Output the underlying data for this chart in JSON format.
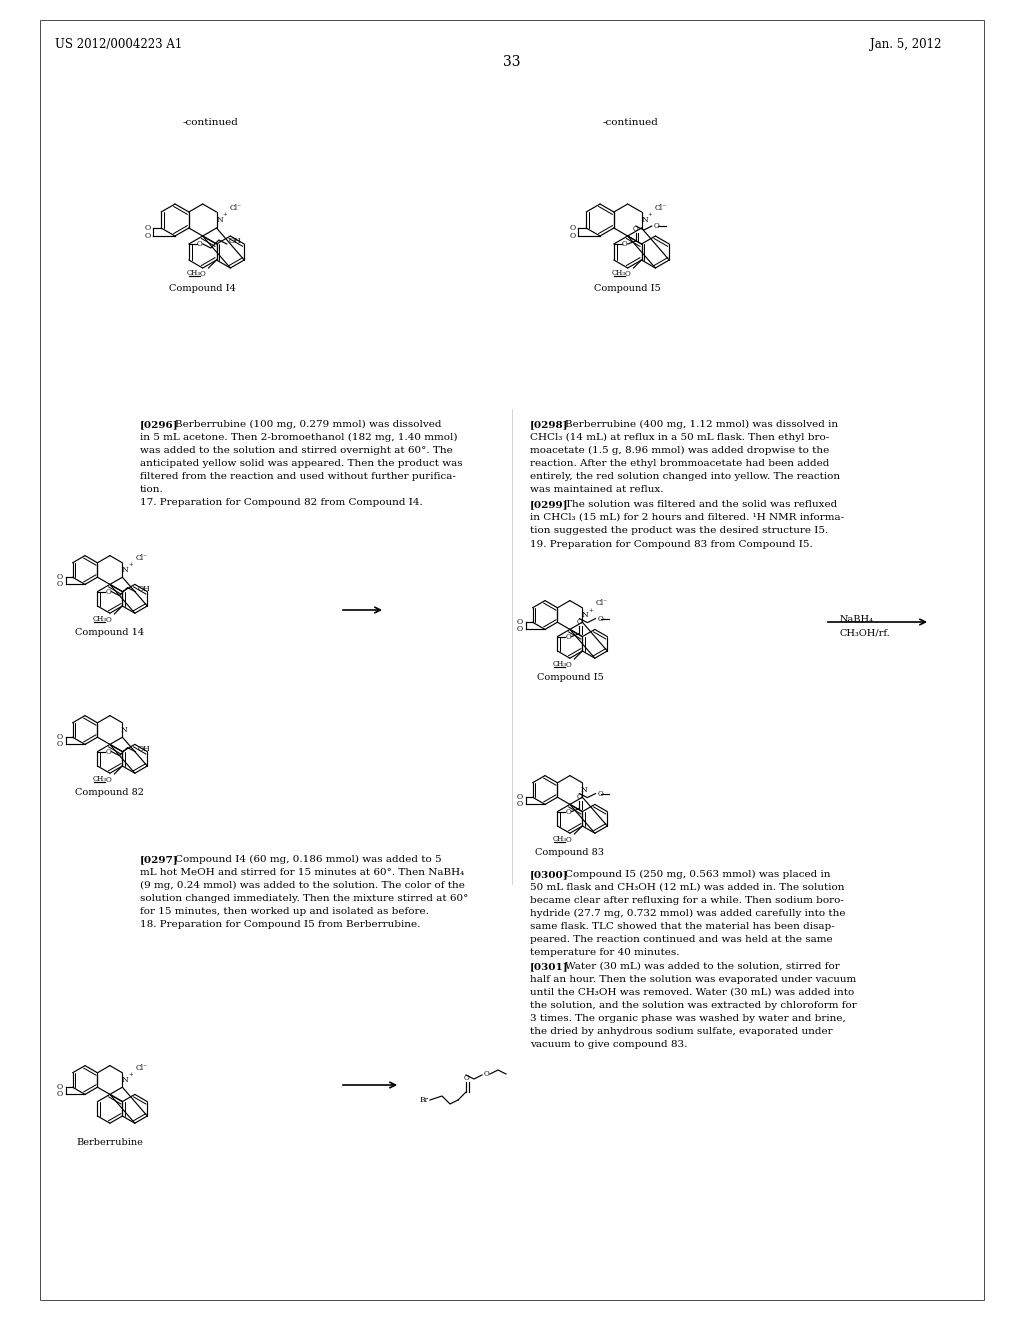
{
  "page_number": "33",
  "patent_number": "US 2012/0004223 A1",
  "patent_date": "Jan. 5, 2012",
  "background_color": "#ffffff",
  "text_color": "#000000",
  "top_compounds": {
    "left_label": "-continued",
    "left_name": "Compound I4",
    "right_label": "-continued",
    "right_name": "Compound I5"
  },
  "paragraphs": [
    {
      "tag": "[0296]",
      "text": "Berberrubine (100 mg, 0.279 mmol) was dissolved in 5 mL acetone. Then 2-bromoethanol (182 mg, 1.40 mmol) was added to the solution and stirred overnight at 60°. The anticipated yellow solid was appeared. Then the product was filtered from the reaction and used without further purification."
    },
    {
      "tag": "17.",
      "text": "Preparation for Compound 82 from Compound I4."
    },
    {
      "tag": "[0297]",
      "text": "Compound I4 (60 mg, 0.186 mmol) was added to 5 mL hot MeOH and stirred for 15 minutes at 60°. Then NaBH₄ (9 mg, 0.24 mmol) was added to the solution. The color of the solution changed immediately. Then the mixture stirred at 60° for 15 minutes, then worked up and isolated as before."
    },
    {
      "tag": "18.",
      "text": "Preparation for Compound I5 from Berberrubine."
    }
  ],
  "right_paragraphs": [
    {
      "tag": "[0298]",
      "text": "Berberrubine (400 mg, 1.12 mmol) was dissolved in CHCl₃ (14 mL) at reflux in a 50 mL flask. Then ethyl bromomoacetate (1.5 g, 8.96 mmol) was added dropwise to the reaction. After the ethyl brommoacetate had been added entirely, the red solution changed into yellow. The reaction was maintained at reflux."
    },
    {
      "tag": "[0299]",
      "text": "The solution was filtered and the solid was refluxed in CHCl₃ (15 mL) for 2 hours and filtered. ¹H NMR information suggested the product was the desired structure I5."
    },
    {
      "tag": "19.",
      "text": "Preparation for Compound 83 from Compound I5."
    },
    {
      "tag": "[0300]",
      "text": "Compound I5 (250 mg, 0.563 mmol) was placed in 50 mL flask and CH₃OH (12 mL) was added in. The solution became clear after refluxing for a while. Then sodium borohydride (27.7 mg, 0.732 mmol) was added carefully into the same flask. TLC showed that the material has been disappeared. The reaction continued and was held at the same temperature for 40 minutes."
    },
    {
      "tag": "[0301]",
      "text": "Water (30 mL) was added to the solution, stirred for half an hour. Then the solution was evaporated under vacuum until the CH₃OH was removed. Water (30 mL) was added into the solution, and the solution was extracted by chloroform for 3 times. The organic phase was washed by water and brine, the dried by anhydrous sodium sulfate, evaporated under vacuum to give compound 83."
    }
  ],
  "reaction_scheme_labels": {
    "compound14_label": "Compound 14",
    "compound82_label": "Compound 82",
    "compound15_label": "Compound I5",
    "compound83_label": "Compound 83",
    "reagent1": "NaBH₄",
    "reagent2": "CH₃OH/rf.",
    "berberrubine_label": "Berberrubine"
  }
}
